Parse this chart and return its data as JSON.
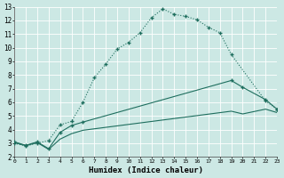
{
  "bg_color": "#cce8e4",
  "grid_color": "#aad8d0",
  "line_color": "#1e6e5e",
  "xlabel": "Humidex (Indice chaleur)",
  "xlim": [
    0,
    23
  ],
  "ylim": [
    2,
    13
  ],
  "xticks": [
    0,
    1,
    2,
    3,
    4,
    5,
    6,
    7,
    8,
    9,
    10,
    11,
    12,
    13,
    14,
    15,
    16,
    17,
    18,
    19,
    20,
    21,
    22,
    23
  ],
  "yticks": [
    2,
    3,
    4,
    5,
    6,
    7,
    8,
    9,
    10,
    11,
    12,
    13
  ],
  "curve1_x": [
    0,
    1,
    2,
    3,
    4,
    5,
    6,
    7,
    8,
    9,
    10,
    11,
    12,
    13,
    14,
    15,
    16,
    17,
    18,
    19,
    22,
    23
  ],
  "curve1_y": [
    3.0,
    2.8,
    3.0,
    3.2,
    4.35,
    4.6,
    6.0,
    7.8,
    8.8,
    9.9,
    10.4,
    11.1,
    12.2,
    12.85,
    12.45,
    12.3,
    12.05,
    11.5,
    11.1,
    9.5,
    6.1,
    5.5
  ],
  "curve2_x": [
    0,
    1,
    2,
    3,
    4,
    5,
    6,
    19,
    20,
    22,
    23
  ],
  "curve2_y": [
    3.1,
    2.85,
    3.1,
    2.6,
    3.8,
    4.3,
    4.55,
    7.6,
    7.1,
    6.2,
    5.5
  ],
  "curve3_x": [
    0,
    1,
    2,
    3,
    4,
    5,
    6,
    19,
    20,
    22,
    23
  ],
  "curve3_y": [
    3.05,
    2.82,
    3.05,
    2.55,
    3.3,
    3.7,
    3.95,
    5.35,
    5.15,
    5.5,
    5.25
  ]
}
